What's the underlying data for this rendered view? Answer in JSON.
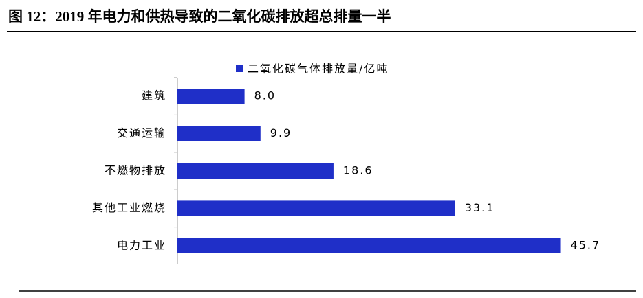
{
  "chart_data": {
    "type": "bar",
    "orientation": "horizontal",
    "title": "图 12：2019 年电力和供热导致的二氧化碳排放超总排量一半",
    "categories": [
      "建筑",
      "交通运输",
      "不燃物排放",
      "其他工业燃烧",
      "电力工业"
    ],
    "series": [
      {
        "name": "二氧化碳气体排放量/亿吨",
        "color": "#1f2fc8",
        "values": [
          8.0,
          9.9,
          18.6,
          33.1,
          45.7
        ],
        "value_labels": [
          "8.0",
          "9.9",
          "18.6",
          "33.1",
          "45.7"
        ]
      }
    ],
    "legend": "top"
  }
}
